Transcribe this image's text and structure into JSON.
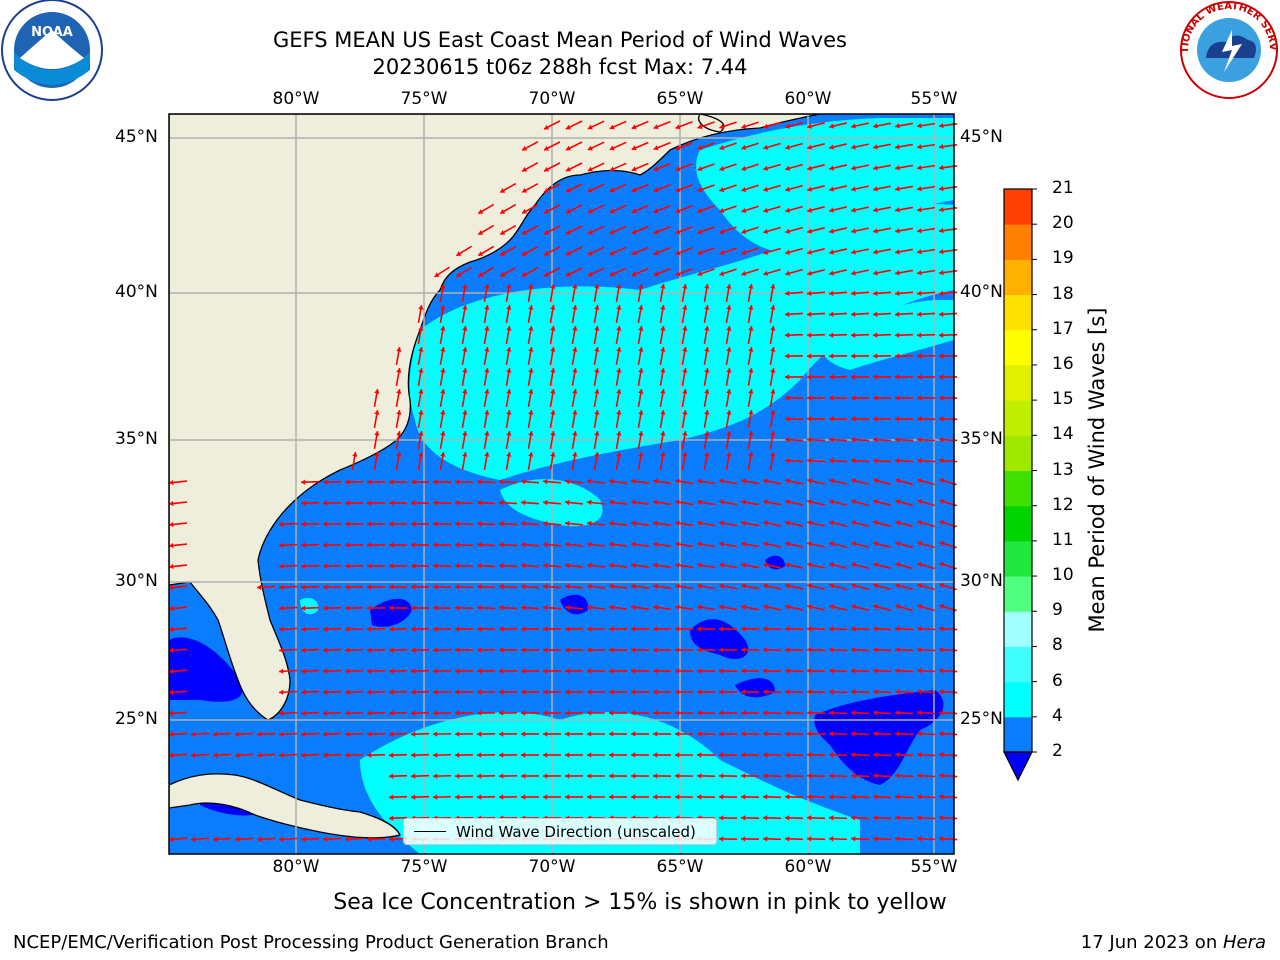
{
  "header": {
    "title_line1": "GEFS MEAN US East Coast Mean Period of Wind Waves",
    "title_line2": "20230615 t06z 288h fcst   Max: 7.44"
  },
  "logos": {
    "noara_text": "NOAA",
    "nws_text": "NATIONAL WEATHER SERVICE"
  },
  "map": {
    "lon_ticks": [
      "80°W",
      "75°W",
      "70°W",
      "65°W",
      "60°W",
      "55°W"
    ],
    "lat_ticks": [
      "45°N",
      "40°N",
      "35°N",
      "30°N",
      "25°N"
    ],
    "legend_label": "Wind Wave Direction (unscaled)",
    "colors": {
      "land": "#efeedc",
      "ocean_2_4": "#0a7dff",
      "ocean_4_6": "#00ffff",
      "ocean_low": "#0000ff",
      "arrow": "#ff0000",
      "grid": "#b0b0b0"
    }
  },
  "colorbar": {
    "title": "Mean Period of Wind Waves [s]",
    "ticks": [
      "2",
      "4",
      "6",
      "8",
      "9",
      "10",
      "11",
      "12",
      "13",
      "14",
      "15",
      "16",
      "17",
      "18",
      "19",
      "20",
      "21"
    ],
    "colors": [
      "#0a7dff",
      "#00ffff",
      "#40ffff",
      "#a0ffff",
      "#50ff80",
      "#20e840",
      "#00d400",
      "#40e000",
      "#a0e800",
      "#c0f000",
      "#e0f000",
      "#ffff00",
      "#ffe000",
      "#ffb000",
      "#ff8000",
      "#ff4000",
      "#ff2000",
      "#ff0000"
    ]
  },
  "footer": {
    "subtitle": "Sea Ice Concentration > 15% is shown in pink to yellow",
    "left": "NCEP/EMC/Verification Post Processing Product Generation Branch",
    "right_date": "17 Jun 2023 on ",
    "right_host": "Hera"
  }
}
